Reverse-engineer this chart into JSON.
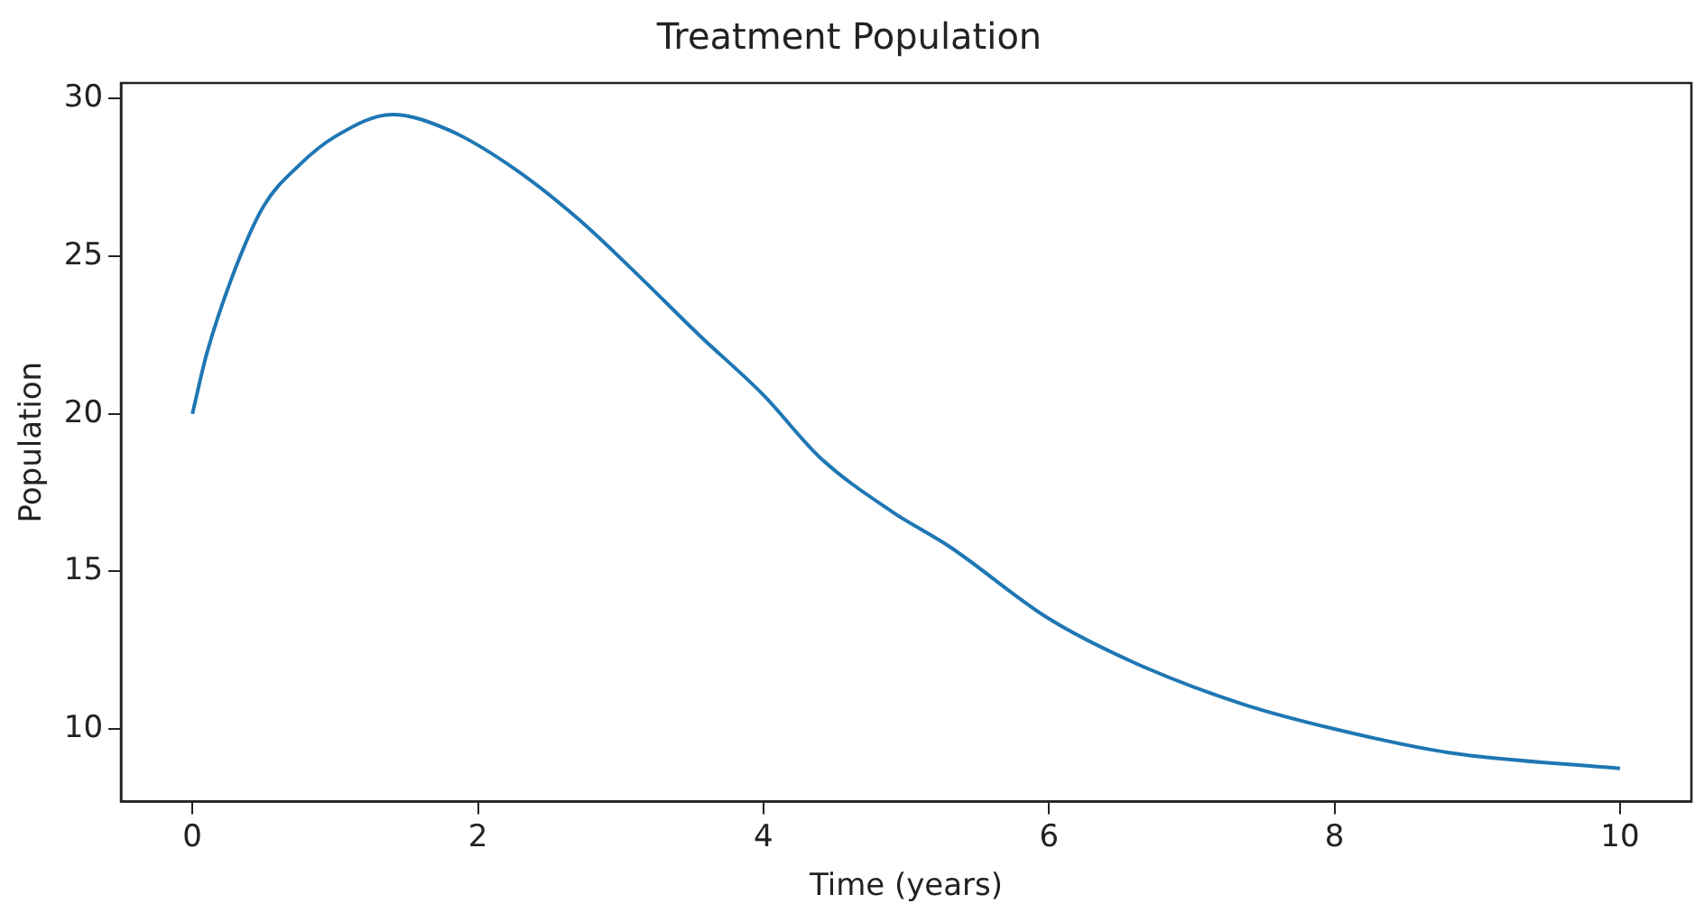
{
  "chart_data": {
    "type": "line",
    "title": "Treatment Population",
    "xlabel": "Time (years)",
    "ylabel": "Population",
    "x": [
      0,
      0.1,
      0.3,
      0.5,
      0.75,
      1,
      1.4,
      1.8,
      2.25,
      2.7,
      3.1,
      3.55,
      4,
      4.4,
      4.9,
      5.3,
      6,
      6.6,
      7.35,
      8,
      8.8,
      10
    ],
    "series": [
      {
        "color": "#1f77b4",
        "values": [
          20,
          21.9,
          24.6,
          26.6,
          27.9,
          28.8,
          29.5,
          29.0,
          27.8,
          26.2,
          24.5,
          22.5,
          20.6,
          18.6,
          16.9,
          15.8,
          13.5,
          12.1,
          10.8,
          10.0,
          9.25,
          8.75
        ]
      }
    ],
    "xlim": [
      -0.5,
      10.5
    ],
    "ylim": [
      7.7,
      30.5
    ],
    "xticks": [
      0,
      2,
      4,
      6,
      8,
      10
    ],
    "yticks": [
      10,
      15,
      20,
      25,
      30
    ],
    "grid": false,
    "legend": false,
    "marker": "none",
    "line_style": "solid"
  }
}
